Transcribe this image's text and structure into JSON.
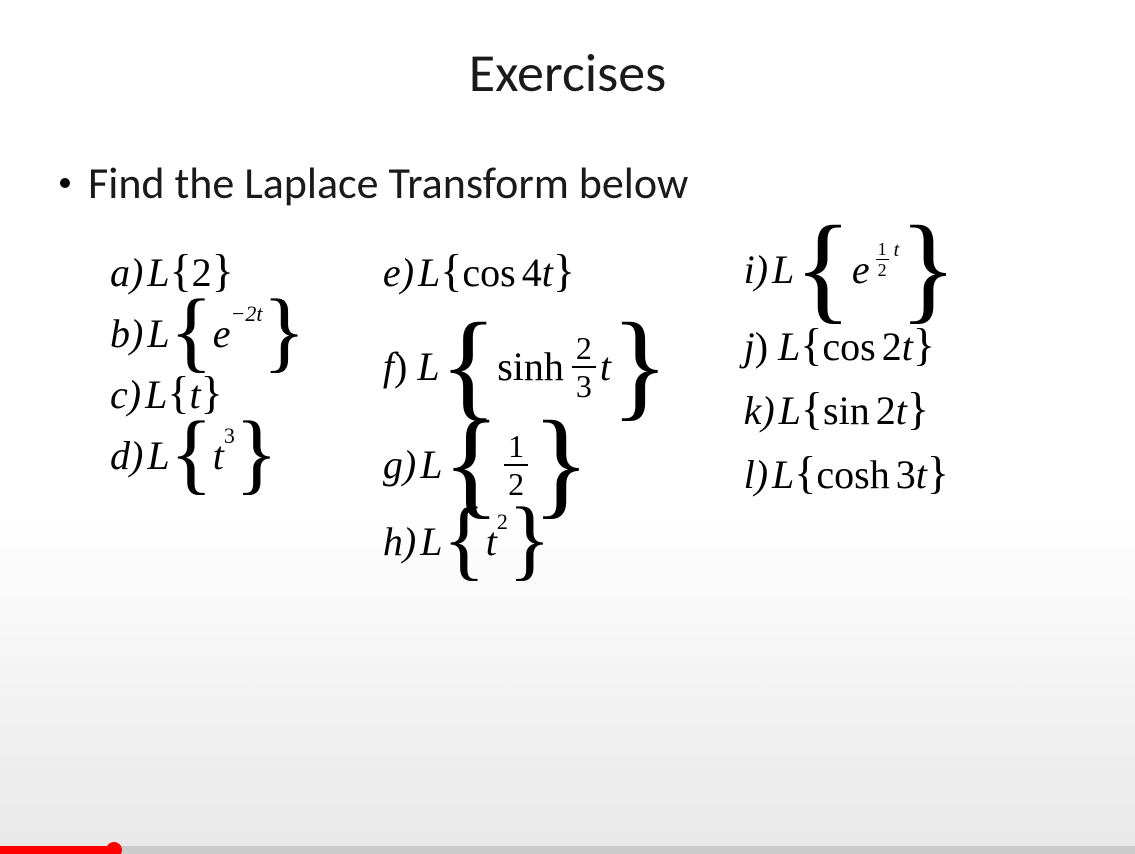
{
  "title": "Exercises",
  "bullet": "Find the Laplace Transform below",
  "problems": {
    "a": {
      "label": "a",
      "L": "L",
      "inner": "2"
    },
    "b": {
      "label": "b",
      "L": "L",
      "base": "e",
      "sup": "−2t"
    },
    "c": {
      "label": "c",
      "L": "L",
      "inner": "t"
    },
    "d": {
      "label": "d",
      "L": "L",
      "base": "t",
      "sup_num": "3"
    },
    "e": {
      "label": "e",
      "L": "L",
      "fn": "cos",
      "arg": "4t"
    },
    "f": {
      "label": "f",
      "L": "L",
      "fn": "sinh",
      "frac_n": "2",
      "frac_d": "3",
      "post": "t"
    },
    "g": {
      "label": "g",
      "L": "L",
      "frac_n": "1",
      "frac_d": "2"
    },
    "h": {
      "label": "h",
      "L": "L",
      "base": "t",
      "sup_num": "2"
    },
    "i": {
      "label": "i",
      "L": "L",
      "base": "e",
      "sup_frac_n": "1",
      "sup_frac_d": "2",
      "sup_post": "t"
    },
    "j": {
      "label": "j",
      "L": "L",
      "fn": "cos",
      "arg": "2t"
    },
    "k": {
      "label": "k",
      "L": "L",
      "fn": "sin",
      "arg": "2t"
    },
    "l": {
      "label": "l",
      "L": "L",
      "fn": "cosh",
      "arg": "3t"
    }
  },
  "progress": {
    "percent": 10,
    "bar_color": "#ff0000",
    "bg_color": "rgba(180,180,180,0.55)"
  }
}
